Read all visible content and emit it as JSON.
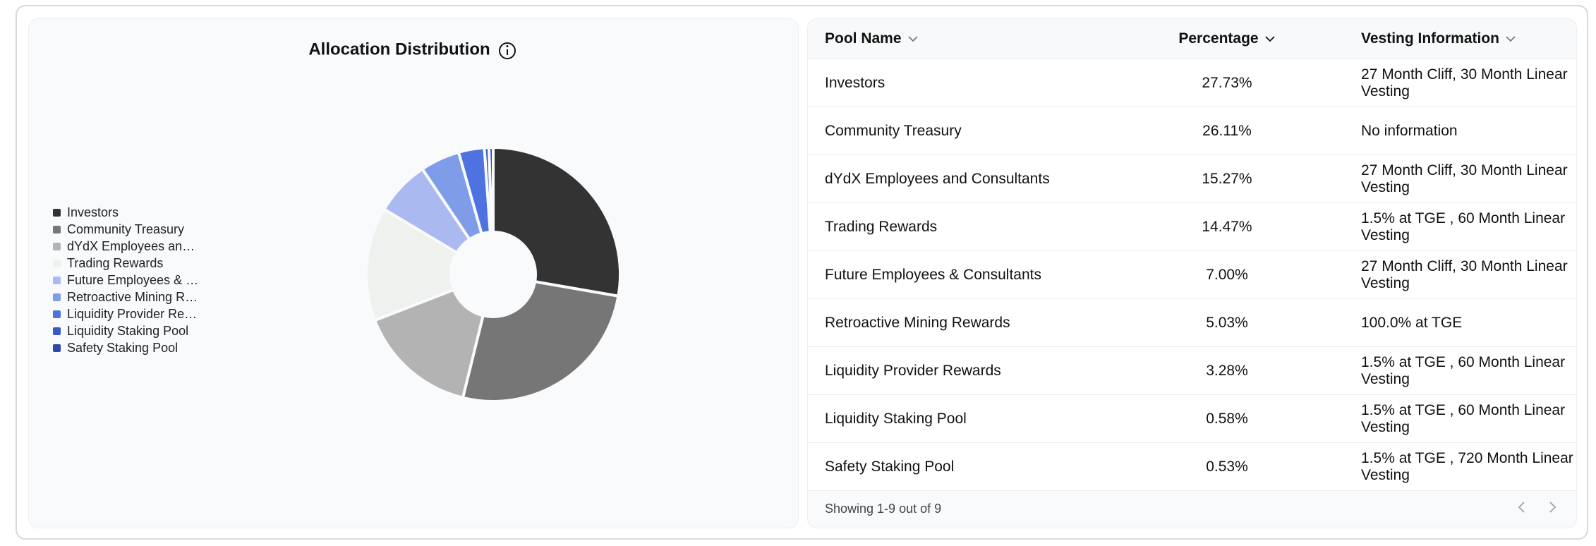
{
  "chart_data": {
    "type": "pie",
    "title": "Allocation Distribution",
    "donut": true,
    "legend": "left",
    "categories": [
      "Investors",
      "Community Treasury",
      "dYdX Employees and Consultants",
      "Trading Rewards",
      "Future Employees & Consultants",
      "Retroactive Mining Rewards",
      "Liquidity Provider Rewards",
      "Liquidity Staking Pool",
      "Safety Staking Pool"
    ],
    "values": [
      27.73,
      26.11,
      15.27,
      14.47,
      7.0,
      5.03,
      3.28,
      0.58,
      0.53
    ],
    "colors": [
      "#333333",
      "#767676",
      "#b3b3b3",
      "#eff1ef",
      "#aabaf0",
      "#7f9ce8",
      "#4e73e0",
      "#3759c9",
      "#2a49a8"
    ]
  },
  "table": {
    "columns": [
      "Pool Name",
      "Percentage",
      "Vesting Information"
    ],
    "rows": [
      [
        "Investors",
        "27.73%",
        "27 Month Cliff, 30 Month Linear Vesting"
      ],
      [
        "Community Treasury",
        "26.11%",
        "No information"
      ],
      [
        "dYdX Employees and Consultants",
        "15.27%",
        "27 Month Cliff, 30 Month Linear Vesting"
      ],
      [
        "Trading Rewards",
        "14.47%",
        "1.5% at TGE , 60 Month Linear Vesting"
      ],
      [
        "Future Employees & Consultants",
        "7.00%",
        "27 Month Cliff, 30 Month Linear Vesting"
      ],
      [
        "Retroactive Mining Rewards",
        "5.03%",
        "100.0% at TGE"
      ],
      [
        "Liquidity Provider Rewards",
        "3.28%",
        "1.5% at TGE , 60 Month Linear Vesting"
      ],
      [
        "Liquidity Staking Pool",
        "0.58%",
        "1.5% at TGE , 60 Month Linear Vesting"
      ],
      [
        "Safety Staking Pool",
        "0.53%",
        "1.5% at TGE , 720 Month Linear Vesting"
      ]
    ],
    "footer": "Showing 1-9 out of 9"
  }
}
